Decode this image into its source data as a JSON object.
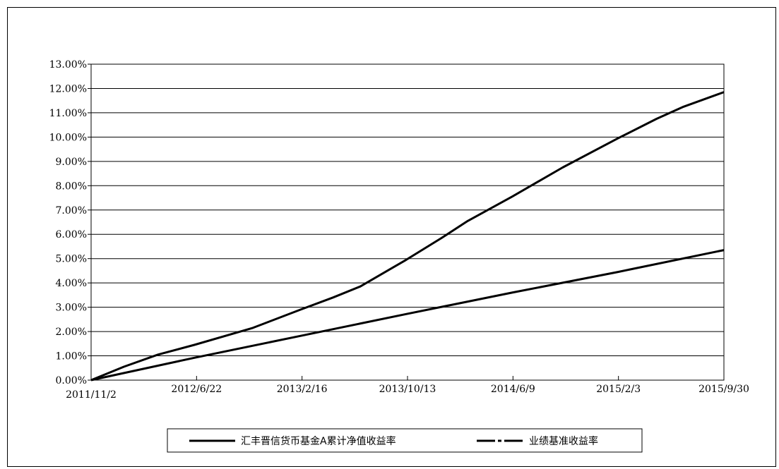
{
  "chart_data": {
    "type": "line",
    "title": "",
    "xlabel": "",
    "ylabel": "",
    "x_tick_labels": [
      "2011/11/2",
      "2012/6/22",
      "2013/2/16",
      "2013/10/13",
      "2014/6/9",
      "2015/2/3",
      "2015/9/30"
    ],
    "y_tick_labels": [
      "0.00%",
      "1.00%",
      "2.00%",
      "3.00%",
      "4.00%",
      "5.00%",
      "6.00%",
      "7.00%",
      "8.00%",
      "9.00%",
      "10.00%",
      "11.00%",
      "12.00%",
      "13.00%"
    ],
    "xlim": [
      "2011/11/2",
      "2015/9/30"
    ],
    "ylim": [
      0,
      13
    ],
    "y_unit": "%",
    "grid": "horizontal",
    "legend_position": "bottom",
    "series": [
      {
        "name": "汇丰晋信货币基金A累计净值收益率",
        "line_style": "solid",
        "color": "#000000",
        "points": [
          [
            "2011/11/2",
            0.0
          ],
          [
            "2012/1/15",
            0.55
          ],
          [
            "2012/4/1",
            1.05
          ],
          [
            "2012/6/22",
            1.45
          ],
          [
            "2012/11/1",
            2.15
          ],
          [
            "2013/2/16",
            2.9
          ],
          [
            "2013/5/1",
            3.4
          ],
          [
            "2013/7/1",
            3.85
          ],
          [
            "2013/10/13",
            4.95
          ],
          [
            "2014/1/1",
            5.85
          ],
          [
            "2014/3/1",
            6.55
          ],
          [
            "2014/6/9",
            7.55
          ],
          [
            "2014/10/1",
            8.75
          ],
          [
            "2015/2/3",
            9.95
          ],
          [
            "2015/5/1",
            10.75
          ],
          [
            "2015/7/1",
            11.25
          ],
          [
            "2015/9/30",
            11.85
          ]
        ]
      },
      {
        "name": "业绩基准收益率",
        "line_style": "dash-dot",
        "color": "#000000",
        "points": [
          [
            "2011/11/2",
            0.0
          ],
          [
            "2012/6/22",
            0.92
          ],
          [
            "2013/2/16",
            1.82
          ],
          [
            "2013/10/13",
            2.72
          ],
          [
            "2014/6/9",
            3.6
          ],
          [
            "2015/2/3",
            4.45
          ],
          [
            "2015/9/30",
            5.35
          ]
        ]
      }
    ]
  }
}
